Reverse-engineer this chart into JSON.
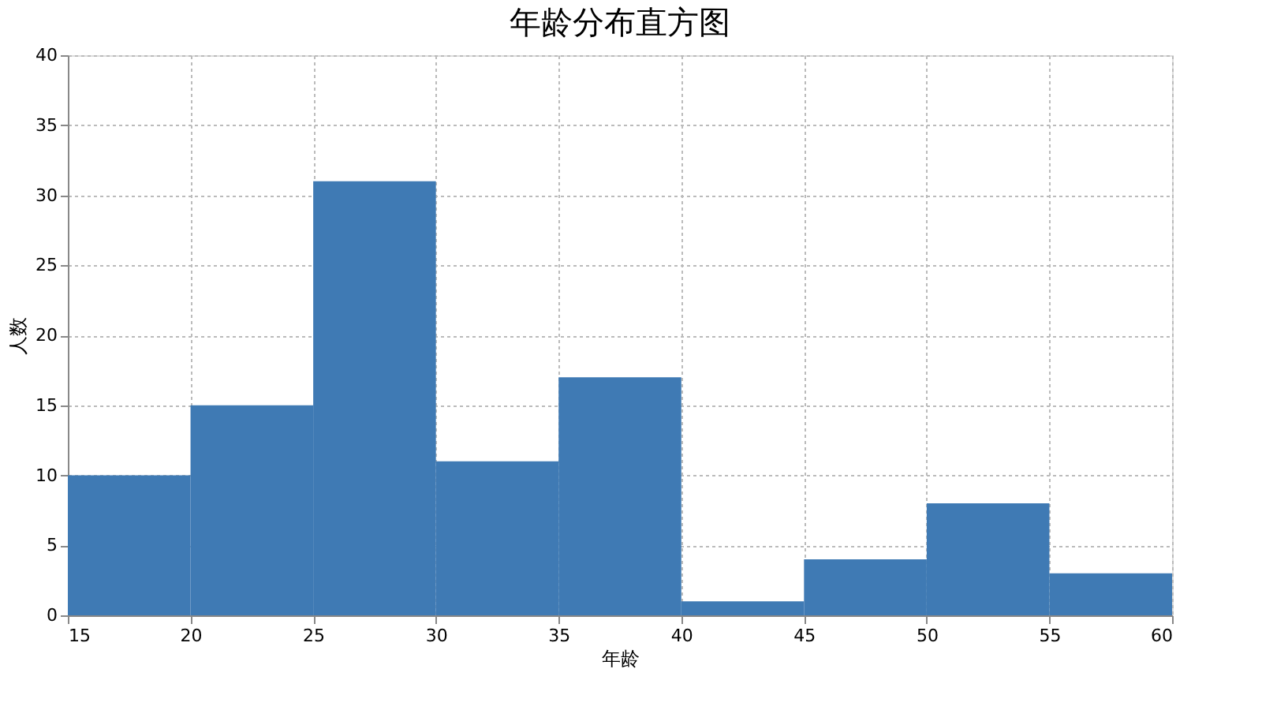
{
  "chart_data": {
    "type": "histogram",
    "title": "年龄分布直方图",
    "xlabel": "年龄",
    "ylabel": "人数",
    "bins": [
      15,
      20,
      25,
      30,
      35,
      40,
      45,
      50,
      55,
      60
    ],
    "values": [
      10,
      15,
      31,
      11,
      17,
      1,
      4,
      8,
      3
    ],
    "color": "#3f7ab4",
    "xlim": [
      15,
      60
    ],
    "xticks": [
      15,
      20,
      25,
      30,
      35,
      40,
      45,
      50,
      55,
      60
    ],
    "ylim": [
      0,
      40
    ],
    "yticks": [
      0,
      5,
      10,
      15,
      20,
      25,
      30,
      35,
      40
    ],
    "grid": true
  }
}
